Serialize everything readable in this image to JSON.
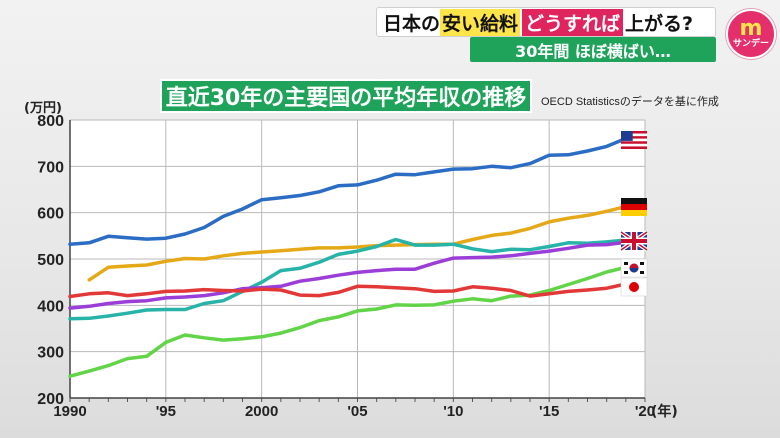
{
  "header": {
    "part1": "日本の",
    "part2": "安い給料",
    "part3": "どうすれば",
    "part4": "上がる?",
    "subtitle": "30年間 ほぼ横ばい…"
  },
  "logo": {
    "mark": "m",
    "sub": "サンデー"
  },
  "chart_data": {
    "type": "line",
    "title": "直近30年の主要国の平均年収の推移",
    "source": "OECD Statisticsのデータを基に作成",
    "ylabel": "(万円)",
    "xlabel": "(年)",
    "xlim": [
      1990,
      2020
    ],
    "ylim": [
      200,
      800
    ],
    "yticks": [
      200,
      300,
      400,
      500,
      600,
      700,
      800
    ],
    "xticks": [
      {
        "x": 1990,
        "label": "1990"
      },
      {
        "x": 1995,
        "label": "'95"
      },
      {
        "x": 2000,
        "label": "2000"
      },
      {
        "x": 2005,
        "label": "'05"
      },
      {
        "x": 2010,
        "label": "'10"
      },
      {
        "x": 2015,
        "label": "'15"
      },
      {
        "x": 2020,
        "label": "'20"
      }
    ],
    "grid": true,
    "series": [
      {
        "key": "us",
        "color": "#2b6cc4",
        "flag": "us-flag-icon",
        "x": [
          1990,
          1991,
          1992,
          1993,
          1994,
          1995,
          1996,
          1997,
          1998,
          1999,
          2000,
          2001,
          2002,
          2003,
          2004,
          2005,
          2006,
          2007,
          2008,
          2009,
          2010,
          2011,
          2012,
          2013,
          2014,
          2015,
          2016,
          2017,
          2018,
          2019
        ],
        "values": [
          532,
          535,
          549,
          546,
          543,
          545,
          554,
          568,
          592,
          608,
          628,
          632,
          637,
          645,
          658,
          660,
          670,
          683,
          682,
          688,
          694,
          695,
          700,
          697,
          706,
          724,
          725,
          733,
          743,
          760
        ]
      },
      {
        "key": "de",
        "color": "#e5a917",
        "flag": "germany-flag-icon",
        "x": [
          1991,
          1992,
          1993,
          1994,
          1995,
          1996,
          1997,
          1998,
          1999,
          2000,
          2001,
          2002,
          2003,
          2004,
          2005,
          2006,
          2007,
          2008,
          2009,
          2010,
          2011,
          2012,
          2013,
          2014,
          2015,
          2016,
          2017,
          2018,
          2019
        ],
        "values": [
          455,
          482,
          485,
          487,
          495,
          501,
          500,
          507,
          512,
          515,
          518,
          521,
          524,
          524,
          526,
          529,
          530,
          531,
          532,
          532,
          542,
          551,
          556,
          566,
          580,
          588,
          594,
          603,
          613
        ]
      },
      {
        "key": "uk",
        "color": "#27b3a8",
        "flag": "uk-flag-icon",
        "x": [
          1990,
          1991,
          1992,
          1993,
          1994,
          1995,
          1996,
          1997,
          1998,
          1999,
          2000,
          2001,
          2002,
          2003,
          2004,
          2005,
          2006,
          2007,
          2008,
          2009,
          2010,
          2011,
          2012,
          2013,
          2014,
          2015,
          2016,
          2017,
          2018,
          2019
        ],
        "values": [
          371,
          372,
          377,
          383,
          390,
          391,
          391,
          404,
          410,
          430,
          450,
          475,
          480,
          493,
          510,
          517,
          527,
          542,
          530,
          530,
          532,
          522,
          516,
          521,
          520,
          527,
          535,
          534,
          537,
          541
        ]
      },
      {
        "key": "kr",
        "color": "#62d448",
        "flag": "korea-flag-icon",
        "x": [
          1990,
          1991,
          1992,
          1993,
          1994,
          1995,
          1996,
          1997,
          1998,
          1999,
          2000,
          2001,
          2002,
          2003,
          2004,
          2005,
          2006,
          2007,
          2008,
          2009,
          2010,
          2011,
          2012,
          2013,
          2014,
          2015,
          2016,
          2017,
          2018,
          2019
        ],
        "values": [
          247,
          258,
          270,
          285,
          290,
          320,
          336,
          330,
          325,
          328,
          332,
          340,
          352,
          367,
          375,
          388,
          392,
          401,
          400,
          401,
          409,
          414,
          410,
          420,
          422,
          432,
          445,
          458,
          472,
          482
        ]
      },
      {
        "key": "eu",
        "color": "#9b3ed8",
        "flag": "",
        "x": [
          1990,
          1991,
          1992,
          1993,
          1994,
          1995,
          1996,
          1997,
          1998,
          1999,
          2000,
          2001,
          2002,
          2003,
          2004,
          2005,
          2006,
          2007,
          2008,
          2009,
          2010,
          2011,
          2012,
          2013,
          2014,
          2015,
          2016,
          2017,
          2018,
          2019
        ],
        "values": [
          394,
          398,
          404,
          408,
          410,
          416,
          418,
          421,
          427,
          436,
          438,
          441,
          452,
          458,
          465,
          471,
          475,
          478,
          478,
          491,
          502,
          503,
          504,
          507,
          512,
          517,
          523,
          530,
          531,
          536
        ]
      },
      {
        "key": "jp",
        "color": "#e23838",
        "flag": "japan-flag-icon",
        "x": [
          1990,
          1991,
          1992,
          1993,
          1994,
          1995,
          1996,
          1997,
          1998,
          1999,
          2000,
          2001,
          2002,
          2003,
          2004,
          2005,
          2006,
          2007,
          2008,
          2009,
          2010,
          2011,
          2012,
          2013,
          2014,
          2015,
          2016,
          2017,
          2018,
          2019
        ],
        "values": [
          419,
          425,
          427,
          421,
          425,
          430,
          431,
          434,
          432,
          431,
          435,
          433,
          422,
          421,
          428,
          441,
          440,
          438,
          436,
          430,
          431,
          440,
          437,
          432,
          420,
          425,
          430,
          433,
          437,
          446
        ]
      }
    ]
  }
}
